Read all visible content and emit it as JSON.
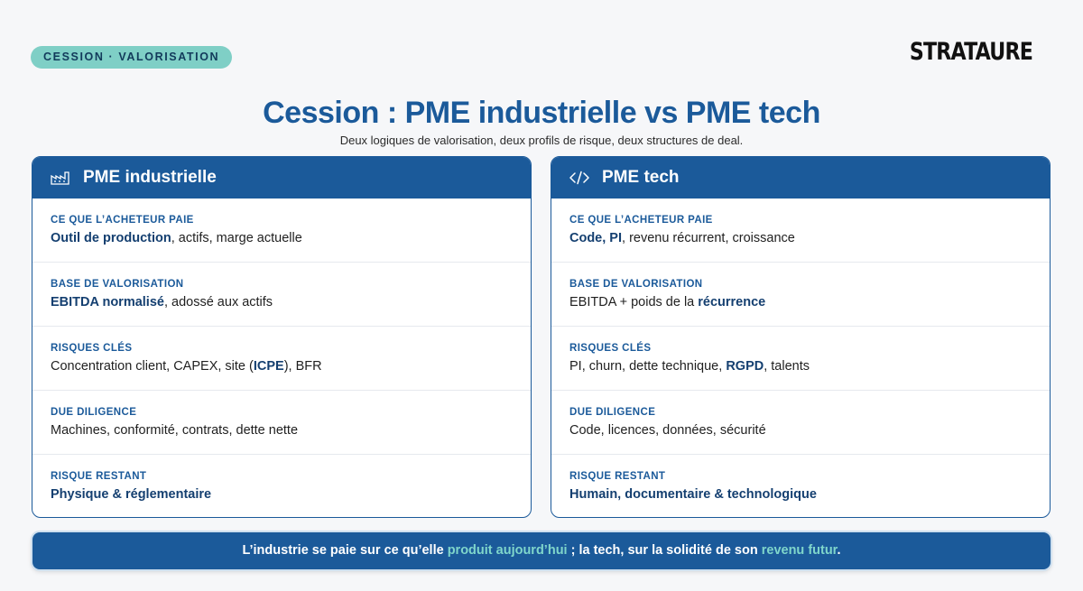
{
  "tag": "CESSION · VALORISATION",
  "logo": "STRATAURE",
  "title": "Cession : PME industrielle vs PME tech",
  "subtitle": "Deux logiques de valorisation, deux profils de risque, deux structures de deal.",
  "left": {
    "heading": "PME industrielle",
    "icon": "factory-icon",
    "rows": [
      {
        "label": "CE QUE L’ACHETEUR PAIE",
        "strong": "Outil de production",
        "rest": ", actifs, marge actuelle"
      },
      {
        "label": "BASE DE VALORISATION",
        "strong": "EBITDA normalisé",
        "rest": ", adossé aux actifs"
      },
      {
        "label": "RISQUES CLÉS",
        "pre": "Concentration client, CAPEX, site (",
        "strong": "ICPE",
        "post": "), BFR"
      },
      {
        "label": "DUE DILIGENCE",
        "text": "Machines, conformité, contrats, dette nette"
      },
      {
        "label": "RISQUE RESTANT",
        "strong": "Physique & réglementaire"
      }
    ]
  },
  "right": {
    "heading": "PME tech",
    "icon": "code-icon",
    "rows": [
      {
        "label": "CE QUE L’ACHETEUR PAIE",
        "strong": "Code, PI",
        "rest": ", revenu récurrent, croissance"
      },
      {
        "label": "BASE DE VALORISATION",
        "pre": "EBITDA + poids de la ",
        "strong": "récurrence"
      },
      {
        "label": "RISQUES CLÉS",
        "pre": "PI, churn, dette technique, ",
        "strong": "RGPD",
        "post": ", talents"
      },
      {
        "label": "DUE DILIGENCE",
        "text": "Code, licences, données, sécurité"
      },
      {
        "label": "RISQUE RESTANT",
        "strong": "Humain, documentaire & technologique"
      }
    ]
  },
  "banner": {
    "part1": "L’industrie se paie sur ce qu’elle ",
    "accent1": "produit aujourd’hui",
    "part2": " ; la tech, sur la solidité de son ",
    "accent2": "revenu futur",
    "part3": "."
  },
  "colors": {
    "primary": "#1b5a9a",
    "accent": "#7fcfc6",
    "background": "#f6f7f9"
  }
}
